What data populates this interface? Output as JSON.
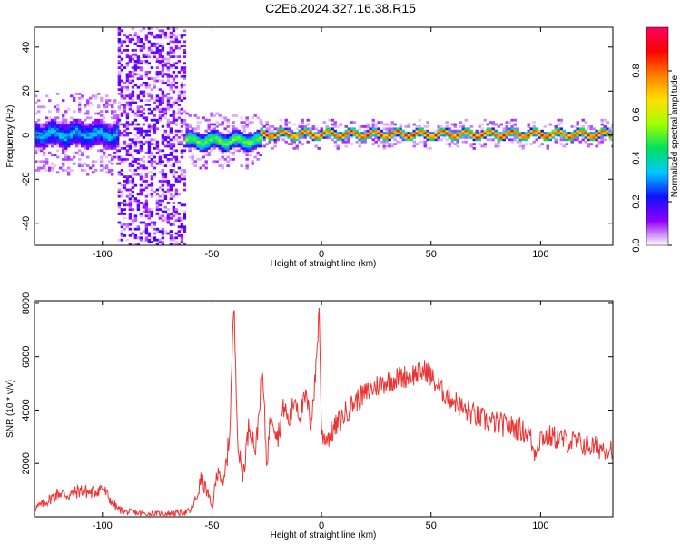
{
  "title": "C2E6.2024.327.16.38.R15",
  "chart_data": [
    {
      "type": "heatmap",
      "xlabel": "Height of straight line (km)",
      "ylabel": "Frequency (Hz)",
      "xlim": [
        -131,
        133
      ],
      "ylim": [
        -50,
        49
      ],
      "xticks": [
        -100,
        -50,
        0,
        50,
        100
      ],
      "yticks": [
        -40,
        -20,
        0,
        20,
        40
      ],
      "segments": [
        {
          "x": [
            -131,
            -93
          ],
          "center_hz": 0,
          "half_width_hz": 6,
          "peak": 0.35
        },
        {
          "x": [
            -93,
            -62
          ],
          "center_hz": 0,
          "half_width_hz": 50,
          "peak": 0.12
        },
        {
          "x": [
            -62,
            -28
          ],
          "center_hz": -3,
          "half_width_hz": 4,
          "peak": 0.55
        },
        {
          "x": [
            -28,
            133
          ],
          "center_hz": 0,
          "half_width_hz": 2,
          "peak": 0.95
        }
      ],
      "colorbar": {
        "label": "Normalized spectral amplitude",
        "range": [
          0,
          1
        ],
        "ticks": [
          "0.0",
          "0.2",
          "0.4",
          "0.6",
          "0.8"
        ],
        "stops": [
          "#ffffff",
          "#9000ff",
          "#1010ff",
          "#00c8ff",
          "#00e060",
          "#a0ff00",
          "#ffe000",
          "#ff8000",
          "#ff0000",
          "#ff0060"
        ]
      }
    },
    {
      "type": "line",
      "xlabel": "Height of straight line (km)",
      "ylabel": "SNR (10 * v/v)",
      "xlim": [
        -131,
        133
      ],
      "ylim": [
        0,
        8100
      ],
      "xticks": [
        -100,
        -50,
        0,
        50,
        100
      ],
      "yticks": [
        2000,
        4000,
        6000,
        8000
      ],
      "color": "#ee3333",
      "x": [
        -131,
        -125,
        -120,
        -115,
        -110,
        -105,
        -100,
        -97,
        -93,
        -90,
        -85,
        -80,
        -75,
        -70,
        -65,
        -60,
        -57,
        -55,
        -52,
        -50,
        -47,
        -45,
        -42,
        -40,
        -38,
        -36,
        -33,
        -30,
        -27,
        -25,
        -23,
        -20,
        -17,
        -15,
        -12,
        -10,
        -7,
        -5,
        -3,
        -1,
        0,
        3,
        5,
        10,
        15,
        20,
        25,
        30,
        35,
        40,
        45,
        48,
        52,
        55,
        60,
        65,
        70,
        75,
        80,
        85,
        90,
        95,
        97,
        100,
        105,
        110,
        115,
        120,
        125,
        130,
        133
      ],
      "y": [
        300,
        600,
        900,
        800,
        1000,
        900,
        1100,
        700,
        300,
        200,
        150,
        100,
        100,
        120,
        150,
        200,
        700,
        1400,
        900,
        300,
        2000,
        1000,
        3000,
        8000,
        2500,
        1500,
        3500,
        2500,
        5500,
        2000,
        4000,
        3000,
        4200,
        3500,
        4500,
        3800,
        4500,
        3500,
        5000,
        7800,
        3000,
        3000,
        3200,
        3800,
        4300,
        4600,
        4900,
        5100,
        5200,
        5300,
        5400,
        5500,
        5000,
        4700,
        4400,
        4000,
        3800,
        3600,
        3500,
        3400,
        3300,
        3100,
        2400,
        3000,
        3000,
        2900,
        2800,
        2700,
        2600,
        2600,
        2600
      ]
    }
  ]
}
